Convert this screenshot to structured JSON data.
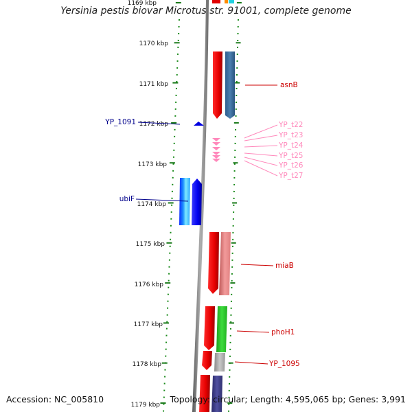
{
  "title": "Yersinia pestis biovar Microtus str. 91001, complete genome",
  "footer": {
    "accession": "Accession: NC_005810",
    "summary": "Topology: circular; Length: 4,595,065 bp; Genes: 3,991"
  },
  "ruler": {
    "top_label": "1169 kbp",
    "labels": [
      "1170 kbp",
      "1171 kbp",
      "1172 kbp",
      "1173 kbp",
      "1174 kbp",
      "1175 kbp",
      "1176 kbp",
      "1177 kbp",
      "1178 kbp",
      "1179 kbp"
    ]
  },
  "genes": {
    "left": [
      {
        "label": "YP_1091",
        "color": "#00008b"
      },
      {
        "label": "ubiF",
        "color": "#00008b"
      }
    ],
    "right": [
      {
        "label": "asnB",
        "color": "#cc0000"
      },
      {
        "label": "YP_t22",
        "color": "#ff88bb"
      },
      {
        "label": "YP_t23",
        "color": "#ff88bb"
      },
      {
        "label": "YP_t24",
        "color": "#ff88bb"
      },
      {
        "label": "YP_t25",
        "color": "#ff88bb"
      },
      {
        "label": "YP_t26",
        "color": "#ff88bb"
      },
      {
        "label": "YP_t27",
        "color": "#ff88bb"
      },
      {
        "label": "miaB",
        "color": "#cc0000"
      },
      {
        "label": "phoH1",
        "color": "#cc0000"
      },
      {
        "label": "YP_1095",
        "color": "#cc0000"
      }
    ]
  }
}
